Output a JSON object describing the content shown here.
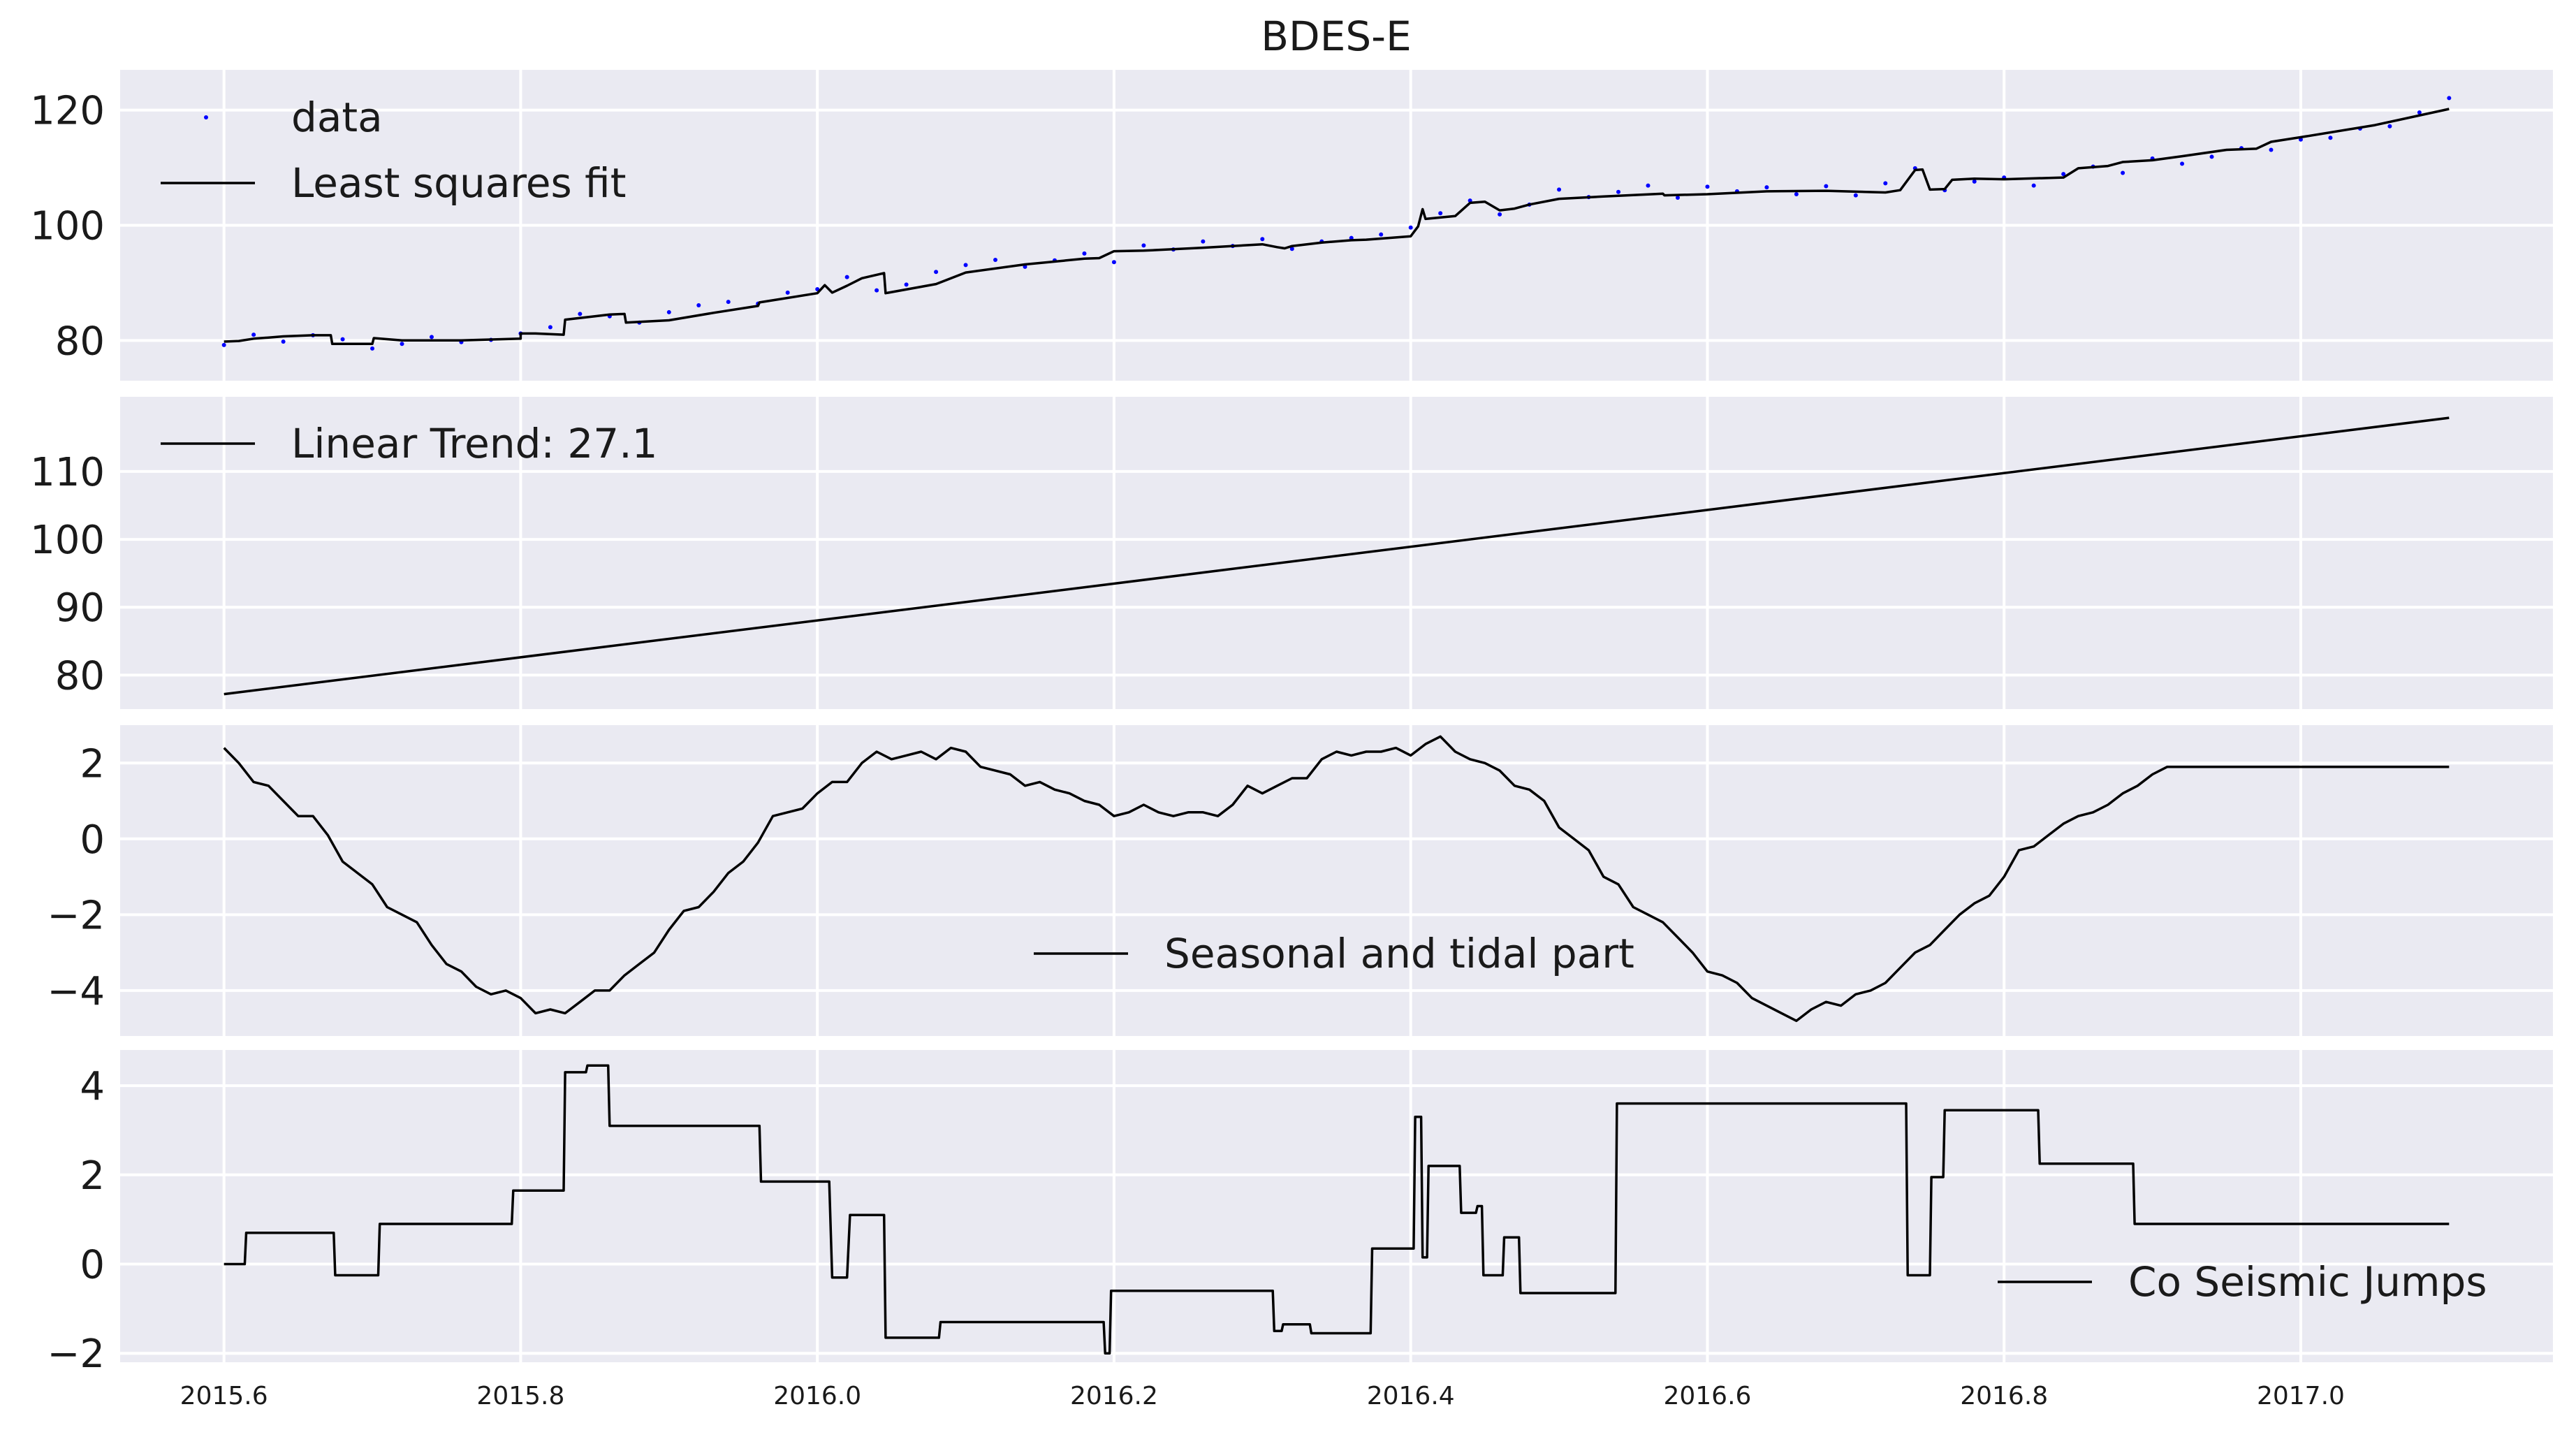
{
  "title": "BDES-E",
  "chart_data": {
    "type": "line",
    "title": "BDES-E",
    "grid": true,
    "background": "#eaeaf2",
    "x_ticks": [
      "2015.6",
      "2015.8",
      "2016.0",
      "2016.2",
      "2016.4",
      "2016.6",
      "2016.8",
      "2017.0"
    ],
    "x_range": [
      2015.53,
      2017.17
    ],
    "panels": [
      {
        "name": "data-panel",
        "ylim": [
          73,
          127
        ],
        "y_ticks": [
          "80",
          "100",
          "120"
        ],
        "legend_position": "upper-left",
        "series": [
          {
            "name": "data",
            "style": "points",
            "color": "#0000ff",
            "x": [
              2015.6,
              2015.62,
              2015.64,
              2015.66,
              2015.68,
              2015.7,
              2015.72,
              2015.74,
              2015.76,
              2015.78,
              2015.8,
              2015.82,
              2015.84,
              2015.86,
              2015.88,
              2015.9,
              2015.92,
              2015.94,
              2015.96,
              2015.98,
              2016.0,
              2016.02,
              2016.04,
              2016.06,
              2016.08,
              2016.1,
              2016.12,
              2016.14,
              2016.16,
              2016.18,
              2016.2,
              2016.22,
              2016.24,
              2016.26,
              2016.28,
              2016.3,
              2016.32,
              2016.34,
              2016.36,
              2016.38,
              2016.4,
              2016.42,
              2016.44,
              2016.46,
              2016.48,
              2016.5,
              2016.52,
              2016.54,
              2016.56,
              2016.58,
              2016.6,
              2016.62,
              2016.64,
              2016.66,
              2016.68,
              2016.7,
              2016.72,
              2016.74,
              2016.76,
              2016.78,
              2016.8,
              2016.82,
              2016.84,
              2016.86,
              2016.88,
              2016.9,
              2016.92,
              2016.94,
              2016.96,
              2016.98,
              2017.0,
              2017.02,
              2017.04,
              2017.06,
              2017.08,
              2017.1
            ],
            "y": [
              79.2,
              81.0,
              79.8,
              80.9,
              80.2,
              78.6,
              79.4,
              80.6,
              79.7,
              80.1,
              81.2,
              82.3,
              84.6,
              84.2,
              83.1,
              84.9,
              86.1,
              86.7,
              86.4,
              88.3,
              88.9,
              91.0,
              88.7,
              89.7,
              91.9,
              93.1,
              94.0,
              92.8,
              93.9,
              95.1,
              93.6,
              96.5,
              95.8,
              97.2,
              96.4,
              97.6,
              95.9,
              97.2,
              97.8,
              98.4,
              99.6,
              102.1,
              104.3,
              101.9,
              103.6,
              106.2,
              104.9,
              105.8,
              106.9,
              104.8,
              106.7,
              105.9,
              106.6,
              105.4,
              106.8,
              105.2,
              107.3,
              109.9,
              106.1,
              107.6,
              108.3,
              106.9,
              108.9,
              110.2,
              109.1,
              111.6,
              110.7,
              111.9,
              113.4,
              113.1,
              114.9,
              115.2,
              116.8,
              117.2,
              119.6,
              122.1
            ]
          },
          {
            "name": "Least squares fit",
            "style": "line",
            "color": "#000000",
            "x": [
              2015.6,
              2015.61,
              2015.62,
              2015.63,
              2015.64,
              2015.66,
              2015.672,
              2015.673,
              2015.7,
              2015.701,
              2015.72,
              2015.76,
              2015.8,
              2015.8,
              2015.81,
              2015.829,
              2015.83,
              2015.85,
              2015.86,
              2015.87,
              2015.871,
              2015.9,
              2015.93,
              2015.96,
              2015.961,
              2016.0,
              2016.005,
              2016.01,
              2016.02,
              2016.03,
              2016.045,
              2016.046,
              2016.08,
              2016.1,
              2016.14,
              2016.18,
              2016.19,
              2016.2,
              2016.22,
              2016.26,
              2016.3,
              2016.31,
              2016.315,
              2016.32,
              2016.34,
              2016.36,
              2016.37,
              2016.38,
              2016.4,
              2016.405,
              2016.408,
              2016.41,
              2016.43,
              2016.44,
              2016.45,
              2016.46,
              2016.47,
              2016.48,
              2016.5,
              2016.53,
              2016.57,
              2016.571,
              2016.6,
              2016.64,
              2016.68,
              2016.72,
              2016.73,
              2016.74,
              2016.745,
              2016.75,
              2016.76,
              2016.765,
              2016.78,
              2016.8,
              2016.84,
              2016.85,
              2016.87,
              2016.88,
              2016.9,
              2016.92,
              2016.95,
              2016.97,
              2016.98,
              2017.0,
              2017.05,
              2017.1
            ],
            "y": [
              79.8,
              79.9,
              80.3,
              80.5,
              80.7,
              80.9,
              80.9,
              79.4,
              79.4,
              80.4,
              80.0,
              80.0,
              80.3,
              81.2,
              81.2,
              81.0,
              83.6,
              84.2,
              84.5,
              84.6,
              83.1,
              83.5,
              84.8,
              86.0,
              86.6,
              88.2,
              89.6,
              88.3,
              89.5,
              90.8,
              91.7,
              88.2,
              89.8,
              91.8,
              93.2,
              94.2,
              94.3,
              95.5,
              95.6,
              96.1,
              96.7,
              96.2,
              96.0,
              96.4,
              97.0,
              97.4,
              97.5,
              97.7,
              98.1,
              99.8,
              102.8,
              101.1,
              101.6,
              103.9,
              104.1,
              102.6,
              102.9,
              103.6,
              104.6,
              105.0,
              105.5,
              105.2,
              105.4,
              105.9,
              106.0,
              105.7,
              106.1,
              109.6,
              109.7,
              106.2,
              106.3,
              107.9,
              108.1,
              108.0,
              108.3,
              109.9,
              110.3,
              111.0,
              111.3,
              112.0,
              113.1,
              113.3,
              114.5,
              115.3,
              117.4,
              120.2
            ]
          }
        ]
      },
      {
        "name": "trend-panel",
        "ylim": [
          75,
          121
        ],
        "y_ticks": [
          "80",
          "90",
          "100",
          "110"
        ],
        "legend_position": "upper-left",
        "series": [
          {
            "name": "Linear Trend: 27.1",
            "style": "line",
            "color": "#000000",
            "x": [
              2015.6,
              2017.1
            ],
            "y": [
              77.2,
              117.9
            ]
          }
        ]
      },
      {
        "name": "seasonal-panel",
        "ylim": [
          -5.2,
          3.0
        ],
        "y_ticks": [
          "2",
          "0",
          "−2",
          "−4"
        ],
        "legend_position": "lower-center",
        "series": [
          {
            "name": "Seasonal and tidal part",
            "style": "line",
            "color": "#000000",
            "x": [
              2015.6,
              2015.61,
              2015.62,
              2015.63,
              2015.64,
              2015.65,
              2015.66,
              2015.67,
              2015.68,
              2015.69,
              2015.7,
              2015.71,
              2015.72,
              2015.73,
              2015.74,
              2015.75,
              2015.76,
              2015.77,
              2015.78,
              2015.79,
              2015.8,
              2015.81,
              2015.82,
              2015.83,
              2015.84,
              2015.85,
              2015.86,
              2015.87,
              2015.88,
              2015.89,
              2015.9,
              2015.91,
              2015.92,
              2015.93,
              2015.94,
              2015.95,
              2015.96,
              2015.97,
              2015.98,
              2015.99,
              2016.0,
              2016.01,
              2016.02,
              2016.03,
              2016.04,
              2016.05,
              2016.06,
              2016.07,
              2016.08,
              2016.09,
              2016.1,
              2016.11,
              2016.12,
              2016.13,
              2016.14,
              2016.15,
              2016.16,
              2016.17,
              2016.18,
              2016.19,
              2016.2,
              2016.21,
              2016.22,
              2016.23,
              2016.24,
              2016.25,
              2016.26,
              2016.27,
              2016.28,
              2016.29,
              2016.3,
              2016.31,
              2016.32,
              2016.33,
              2016.34,
              2016.35,
              2016.36,
              2016.37,
              2016.38,
              2016.39,
              2016.4,
              2016.41,
              2016.42,
              2016.43,
              2016.44,
              2016.45,
              2016.46,
              2016.47,
              2016.48,
              2016.49,
              2016.5,
              2016.51,
              2016.52,
              2016.53,
              2016.54,
              2016.55,
              2016.56,
              2016.57,
              2016.58,
              2016.59,
              2016.6,
              2016.61,
              2016.62,
              2016.63,
              2016.64,
              2016.65,
              2016.66,
              2016.67,
              2016.68,
              2016.69,
              2016.7,
              2016.71,
              2016.72,
              2016.73,
              2016.74,
              2016.75,
              2016.76,
              2016.77,
              2016.78,
              2016.79,
              2016.8,
              2016.81,
              2016.82,
              2016.83,
              2016.84,
              2016.85,
              2016.86,
              2016.87,
              2016.88,
              2016.89,
              2016.9,
              2016.91,
              2016.92,
              2016.93,
              2016.94,
              2016.95,
              2016.96,
              2016.97,
              2016.98,
              2016.99,
              2017.0,
              2017.01,
              2017.02,
              2017.03,
              2017.04,
              2017.05,
              2017.06,
              2017.07,
              2017.08,
              2017.09,
              2017.1
            ],
            "y": [
              2.4,
              2.0,
              1.5,
              1.4,
              1.0,
              0.6,
              0.6,
              0.1,
              -0.6,
              -0.9,
              -1.2,
              -1.8,
              -2.0,
              -2.2,
              -2.8,
              -3.3,
              -3.5,
              -3.9,
              -4.1,
              -4.0,
              -4.2,
              -4.6,
              -4.5,
              -4.6,
              -4.3,
              -4.0,
              -4.0,
              -3.6,
              -3.3,
              -3.0,
              -2.4,
              -1.9,
              -1.8,
              -1.4,
              -0.9,
              -0.6,
              -0.1,
              0.6,
              0.7,
              0.8,
              1.2,
              1.5,
              1.5,
              2.0,
              2.3,
              2.1,
              2.2,
              2.3,
              2.1,
              2.4,
              2.3,
              1.9,
              1.8,
              1.7,
              1.4,
              1.5,
              1.3,
              1.2,
              1.0,
              0.9,
              0.6,
              0.7,
              0.9,
              0.7,
              0.6,
              0.7,
              0.7,
              0.6,
              0.9,
              1.4,
              1.2,
              1.4,
              1.6,
              1.6,
              2.1,
              2.3,
              2.2,
              2.3,
              2.3,
              2.4,
              2.2,
              2.5,
              2.7,
              2.3,
              2.1,
              2.0,
              1.8,
              1.4,
              1.3,
              1.0,
              0.3,
              0.0,
              -0.3,
              -1.0,
              -1.2,
              -1.8,
              -2.0,
              -2.2,
              -2.6,
              -3.0,
              -3.5,
              -3.6,
              -3.8,
              -4.2,
              -4.4,
              -4.6,
              -4.8,
              -4.5,
              -4.3,
              -4.4,
              -4.1,
              -4.0,
              -3.8,
              -3.4,
              -3.0,
              -2.8,
              -2.4,
              -2.0,
              -1.7,
              -1.5,
              -1.0,
              -0.3,
              -0.2,
              0.1,
              0.4,
              0.6,
              0.7,
              0.9,
              1.2,
              1.4,
              1.7,
              1.9,
              1.9,
              1.9,
              1.9,
              1.9,
              1.9,
              1.9,
              1.9,
              1.9,
              1.9,
              1.9,
              1.9,
              1.9,
              1.9,
              1.9,
              1.9,
              1.9,
              1.9,
              1.9,
              1.9
            ]
          }
        ]
      },
      {
        "name": "jumps-panel",
        "ylim": [
          -2.2,
          4.8
        ],
        "y_ticks": [
          "4",
          "2",
          "0",
          "−2"
        ],
        "legend_position": "lower-right",
        "series": [
          {
            "name": "Co Seismic Jumps",
            "style": "line",
            "color": "#000000",
            "x": [
              2015.6,
              2015.614,
              2015.615,
              2015.674,
              2015.675,
              2015.704,
              2015.705,
              2015.794,
              2015.795,
              2015.829,
              2015.83,
              2015.844,
              2015.845,
              2015.859,
              2015.86,
              2015.961,
              2015.962,
              2016.008,
              2016.01,
              2016.02,
              2016.022,
              2016.045,
              2016.046,
              2016.082,
              2016.083,
              2016.193,
              2016.194,
              2016.197,
              2016.198,
              2016.307,
              2016.308,
              2016.313,
              2016.314,
              2016.332,
              2016.333,
              2016.373,
              2016.374,
              2016.402,
              2016.403,
              2016.407,
              2016.408,
              2016.411,
              2016.412,
              2016.433,
              2016.434,
              2016.444,
              2016.445,
              2016.448,
              2016.449,
              2016.462,
              2016.463,
              2016.473,
              2016.474,
              2016.538,
              2016.539,
              2016.734,
              2016.735,
              2016.75,
              2016.751,
              2016.759,
              2016.76,
              2016.823,
              2016.824,
              2016.887,
              2016.888,
              2016.98,
              2016.981,
              2017.1
            ],
            "y": [
              0.0,
              0.0,
              0.7,
              0.7,
              -0.25,
              -0.25,
              0.9,
              0.9,
              1.65,
              1.65,
              4.3,
              4.3,
              4.45,
              4.45,
              3.1,
              3.1,
              1.85,
              1.85,
              -0.3,
              -0.3,
              1.1,
              1.1,
              -1.65,
              -1.65,
              -1.3,
              -1.3,
              -2.0,
              -2.0,
              -0.6,
              -0.6,
              -1.5,
              -1.5,
              -1.35,
              -1.35,
              -1.55,
              -1.55,
              0.35,
              0.35,
              3.3,
              3.3,
              0.15,
              0.15,
              2.2,
              2.2,
              1.15,
              1.15,
              1.3,
              1.3,
              -0.25,
              -0.25,
              0.6,
              0.6,
              -0.65,
              -0.65,
              3.6,
              3.6,
              -0.25,
              -0.25,
              1.95,
              1.95,
              3.45,
              3.45,
              2.25,
              2.25,
              0.9,
              0.9,
              0.9,
              0.9
            ]
          }
        ]
      }
    ]
  }
}
